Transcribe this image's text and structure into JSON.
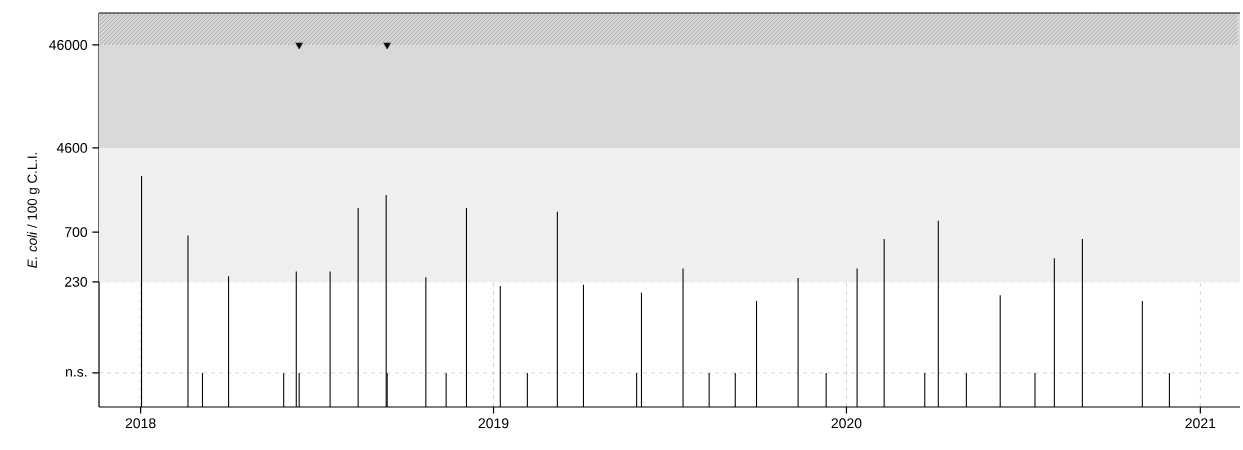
{
  "chart_data": {
    "type": "bar",
    "ylabel": "*E. coli* / 100 g C.L.I.",
    "log": "y",
    "grid": true,
    "xlim": [
      "2017-11-19",
      "2021-02-11"
    ],
    "xticks": [
      "2018",
      "2019",
      "2020",
      "2021"
    ],
    "ylim": [
      14,
      94000
    ],
    "yticks": [
      {
        "value": 30,
        "label": "n.s."
      },
      230,
      700,
      4600,
      46000
    ],
    "bands": [
      {
        "axis": "y",
        "from": 230,
        "to": 4600,
        "color": "#efefef"
      },
      {
        "axis": "y",
        "from": 4600,
        "to": 46000,
        "color": "#d9d9d9"
      },
      {
        "axis": "y",
        "from": 46000,
        "to": 94000,
        "color": "#d9d9d9"
      }
    ],
    "series": [
      {
        "color": "#000000",
        "x": [
          "2018-01-02",
          "2018-02-19",
          "2018-03-06",
          "2018-04-02",
          "2018-05-29",
          "2018-06-11",
          "2018-06-14",
          "2018-07-16",
          "2018-08-14",
          "2018-09-12",
          "2018-09-13",
          "2018-10-23",
          "2018-11-13",
          "2018-12-04",
          "2019-01-08",
          "2019-02-05",
          "2019-03-08",
          "2019-04-04",
          "2019-05-29",
          "2019-06-03",
          "2019-07-16",
          "2019-08-12",
          "2019-09-08",
          "2019-09-30",
          "2019-11-12",
          "2019-12-11",
          "2020-01-12",
          "2020-02-09",
          "2020-03-22",
          "2020-04-05",
          "2020-05-04",
          "2020-06-08",
          "2020-07-14",
          "2020-08-03",
          "2020-09-01",
          "2020-11-02",
          "2020-11-30"
        ],
        "values": [
          2460,
          650,
          30,
          260,
          30,
          290,
          30,
          290,
          1200,
          1600,
          30,
          255,
          30,
          1200,
          210,
          30,
          1100,
          215,
          30,
          180,
          310,
          30,
          30,
          150,
          250,
          30,
          310,
          600,
          30,
          900,
          30,
          170,
          30,
          390,
          600,
          150,
          30
        ]
      },
      {
        "type": "scatter",
        "marker": "triangle",
        "color": "#000000",
        "x": [
          "2018-06-14",
          "2018-09-13"
        ],
        "values": [
          46000,
          46000
        ]
      }
    ]
  }
}
